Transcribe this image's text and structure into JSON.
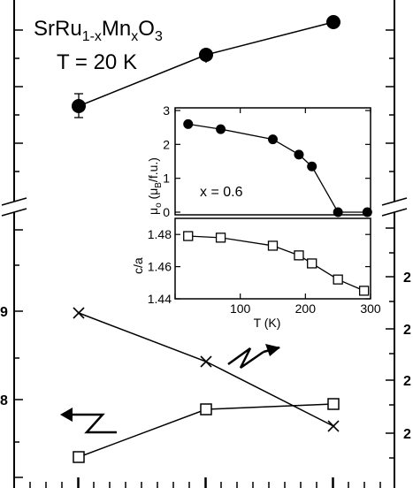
{
  "chart_data": [
    {
      "type": "scatter",
      "panel": "main-top",
      "title_parts": {
        "base": "SrRu",
        "sub1": "1-x",
        "mid": "Mn",
        "sub2": "x",
        "end": "O",
        "sub3": "3"
      },
      "annotation": "T = 20 K",
      "x": [
        0,
        1,
        2
      ],
      "series": [
        {
          "marker": "filled-circle",
          "values": [
            0.32,
            0.61,
            0.9
          ]
        }
      ],
      "broken_axis": true
    },
    {
      "type": "line",
      "panel": "main-bottom",
      "x": [
        0,
        1,
        2
      ],
      "y_tick_labels_left": [
        "9",
        "8"
      ],
      "y_tick_labels_right": [
        "2",
        "2",
        "2",
        "2"
      ],
      "series": [
        {
          "marker": "cross",
          "values": [
            1.483,
            1.465,
            1.447
          ],
          "axis_arrow": "right"
        },
        {
          "marker": "open-square",
          "values": [
            1.445,
            1.458,
            1.459
          ],
          "axis_arrow": "left"
        }
      ]
    },
    {
      "type": "line",
      "panel": "inset-top",
      "ylabel_parts": {
        "mu": "μ",
        "mu_sub": "o",
        "open": " (μ",
        "b_sub": "B",
        "close": "/f.u.)"
      },
      "ylim": [
        0,
        3
      ],
      "yticks": [
        0,
        1,
        2,
        3
      ],
      "annotation": "x = 0.6",
      "x": [
        20,
        70,
        150,
        190,
        210,
        250,
        295
      ],
      "series": [
        {
          "marker": "filled-circle",
          "values": [
            2.6,
            2.45,
            2.15,
            1.7,
            1.35,
            0,
            0
          ]
        }
      ]
    },
    {
      "type": "line",
      "panel": "inset-bottom",
      "ylabel": "c/a",
      "xlabel": "T (K)",
      "xlim": [
        0,
        300
      ],
      "xticks": [
        0,
        100,
        200,
        300
      ],
      "ylim": [
        1.44,
        1.49
      ],
      "yticks": [
        1.44,
        1.46,
        1.48
      ],
      "ytick_labels": [
        "1.44",
        "1.46",
        "1.48"
      ],
      "x": [
        20,
        70,
        150,
        190,
        210,
        250,
        290
      ],
      "series": [
        {
          "marker": "open-square",
          "values": [
            1.479,
            1.478,
            1.473,
            1.467,
            1.462,
            1.452,
            1.445
          ]
        }
      ]
    }
  ]
}
